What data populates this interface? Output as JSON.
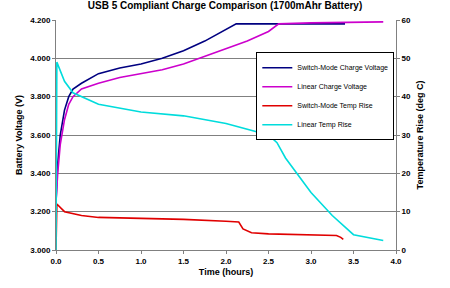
{
  "chart_data": {
    "type": "line",
    "title": "USB 5 Compliant Charge Comparison (1700mAhr Battery)",
    "x_label": "Time (hours)",
    "y_label": "Battery Voltage (V)",
    "y2_label": "Temperature Rise (deg C)",
    "xlim": [
      0,
      4
    ],
    "xticks": [
      {
        "value": 0,
        "label": "0.0"
      },
      0.5,
      {
        "value": 1,
        "label": "1.0"
      },
      1.5,
      {
        "value": 2,
        "label": "2.0"
      },
      2.5,
      {
        "value": 3,
        "label": "3.0"
      },
      3.5,
      {
        "value": 4,
        "label": "4.0"
      }
    ],
    "ylim": [
      3.0,
      4.2
    ],
    "yticks": [
      {
        "value": 3.0,
        "label": "3.000"
      },
      {
        "value": 3.2,
        "label": "3.200"
      },
      {
        "value": 3.4,
        "label": "3.400"
      },
      {
        "value": 3.6,
        "label": "3.600"
      },
      {
        "value": 3.8,
        "label": "3.800"
      },
      {
        "value": 4.0,
        "label": "4.000"
      },
      {
        "value": 4.2,
        "label": "4.200"
      }
    ],
    "y2lim": [
      0,
      60
    ],
    "y2ticks": [
      0,
      10,
      20,
      30,
      40,
      50,
      60
    ],
    "grid": true,
    "legend": "right",
    "series": [
      {
        "name": "Switch-Mode Charge Voltage",
        "color": "#000080",
        "axis": "y",
        "x": [
          0,
          0.02,
          0.05,
          0.1,
          0.15,
          0.2,
          0.3,
          0.5,
          0.75,
          1.0,
          1.25,
          1.5,
          1.75,
          2.0,
          2.12,
          2.5,
          3.0,
          3.4
        ],
        "values": [
          3.25,
          3.45,
          3.6,
          3.73,
          3.8,
          3.84,
          3.87,
          3.92,
          3.95,
          3.97,
          4.0,
          4.04,
          4.09,
          4.15,
          4.18,
          4.18,
          4.18,
          4.18
        ]
      },
      {
        "name": "Linear Charge Voltage",
        "color": "#cc00cc",
        "axis": "y",
        "x": [
          0,
          0.02,
          0.05,
          0.1,
          0.15,
          0.2,
          0.3,
          0.5,
          0.75,
          1.0,
          1.25,
          1.5,
          1.75,
          2.0,
          2.25,
          2.5,
          2.62,
          3.0,
          3.5,
          3.85
        ],
        "values": [
          3.25,
          3.4,
          3.55,
          3.68,
          3.76,
          3.8,
          3.84,
          3.87,
          3.9,
          3.92,
          3.94,
          3.97,
          4.01,
          4.05,
          4.09,
          4.14,
          4.18,
          4.185,
          4.19,
          4.19
        ]
      },
      {
        "name": "Switch-Mode Temp Rise",
        "color": "#e00000",
        "axis": "y2",
        "x": [
          0,
          0.01,
          0.1,
          0.3,
          0.5,
          1.0,
          1.5,
          2.0,
          2.15,
          2.2,
          2.3,
          2.5,
          3.0,
          3.3,
          3.35,
          3.38
        ],
        "values": [
          0,
          12,
          10,
          9,
          8.5,
          8.3,
          8,
          7.5,
          7.3,
          5.5,
          4.5,
          4.2,
          4,
          3.8,
          3.3,
          2.8
        ]
      },
      {
        "name": "Linear Temp Rise",
        "color": "#00dcdc",
        "axis": "y2",
        "x": [
          0,
          0.01,
          0.1,
          0.2,
          0.5,
          1.0,
          1.5,
          2.0,
          2.5,
          2.6,
          2.7,
          3.0,
          3.25,
          3.5,
          3.85
        ],
        "values": [
          0,
          49,
          44,
          41,
          38,
          36,
          35,
          33,
          30,
          28,
          24,
          15,
          9,
          4,
          2.5
        ]
      }
    ]
  }
}
